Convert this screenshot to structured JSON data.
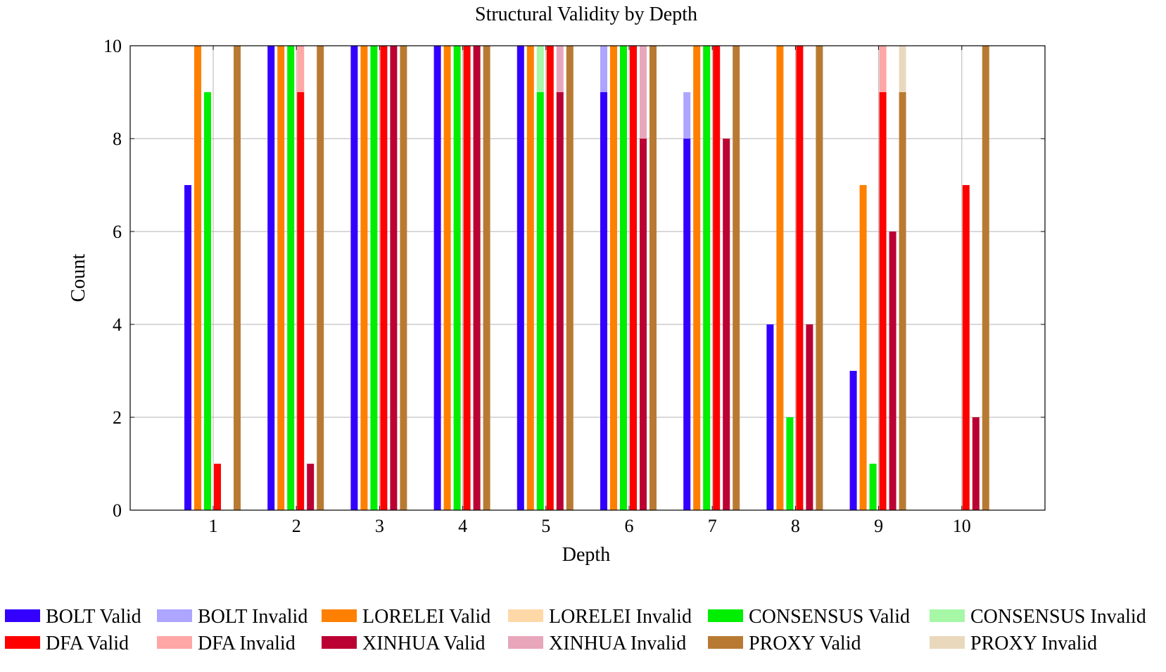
{
  "chart_data": {
    "type": "bar",
    "stacked_pairs": true,
    "title": "Structural Validity by Depth",
    "xlabel": "Depth",
    "ylabel": "Count",
    "ylim": [
      0,
      10
    ],
    "yticks": [
      0,
      2,
      4,
      6,
      8,
      10
    ],
    "grid": true,
    "categories": [
      "1",
      "2",
      "3",
      "4",
      "5",
      "6",
      "7",
      "8",
      "9",
      "10"
    ],
    "groups": [
      {
        "name": "BOLT",
        "valid_label": "BOLT Valid",
        "invalid_label": "BOLT Invalid",
        "valid_color": "#3300ff",
        "invalid_color": "#ada5ff",
        "valid": [
          7,
          10,
          10,
          10,
          10,
          9,
          8,
          4,
          3,
          0
        ],
        "invalid": [
          0,
          0,
          0,
          0,
          0,
          1,
          1,
          0,
          0,
          0
        ]
      },
      {
        "name": "LORELEI",
        "valid_label": "LORELEI Valid",
        "invalid_label": "LORELEI Invalid",
        "valid_color": "#ff8000",
        "invalid_color": "#ffd8a8",
        "valid": [
          10,
          10,
          10,
          10,
          10,
          10,
          10,
          10,
          7,
          0
        ],
        "invalid": [
          0,
          0,
          0,
          0,
          0,
          0,
          0,
          0,
          0,
          0
        ]
      },
      {
        "name": "CONSENSUS",
        "valid_label": "CONSENSUS Valid",
        "invalid_label": "CONSENSUS Invalid",
        "valid_color": "#00ee00",
        "invalid_color": "#a6f7a6",
        "valid": [
          9,
          10,
          10,
          10,
          9,
          10,
          10,
          2,
          1,
          0
        ],
        "invalid": [
          0,
          0,
          0,
          0,
          1,
          0,
          0,
          0,
          0,
          0
        ]
      },
      {
        "name": "DFA",
        "valid_label": "DFA Valid",
        "invalid_label": "DFA Invalid",
        "valid_color": "#ff0000",
        "invalid_color": "#ffa6a6",
        "valid": [
          1,
          9,
          10,
          10,
          10,
          10,
          10,
          10,
          9,
          7
        ],
        "invalid": [
          0,
          1,
          0,
          0,
          0,
          0,
          0,
          0,
          1,
          0
        ]
      },
      {
        "name": "XINHUA",
        "valid_label": "XINHUA Valid",
        "invalid_label": "XINHUA Invalid",
        "valid_color": "#bb0033",
        "invalid_color": "#e8a6bb",
        "valid": [
          0,
          1,
          10,
          10,
          9,
          8,
          8,
          4,
          6,
          2
        ],
        "invalid": [
          0,
          0,
          0,
          0,
          1,
          2,
          0,
          0,
          0,
          0
        ]
      },
      {
        "name": "PROXY",
        "valid_label": "PROXY Valid",
        "invalid_label": "PROXY Invalid",
        "valid_color": "#b87a33",
        "invalid_color": "#ead8bd",
        "valid": [
          10,
          10,
          10,
          10,
          10,
          10,
          10,
          10,
          9,
          10
        ],
        "invalid": [
          0,
          0,
          0,
          0,
          0,
          0,
          0,
          0,
          1,
          0
        ]
      }
    ],
    "legend_position": "bottom"
  }
}
